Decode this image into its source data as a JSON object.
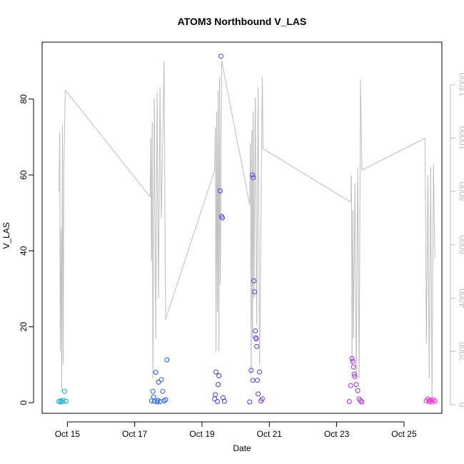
{
  "chart_data": {
    "type": "scatter",
    "title": "ATOM3 Northbound V_LAS",
    "xlabel": "Date",
    "ylabel": "V_LAS",
    "x_ticks": [
      "Oct 15",
      "Oct 17",
      "Oct 19",
      "Oct 21",
      "Oct 23",
      "Oct 25"
    ],
    "x_range": [
      "Oct 14 6:00",
      "Oct 26 3:00"
    ],
    "y_ticks": [
      0,
      20,
      40,
      60,
      80
    ],
    "ylim": [
      -2.8,
      95
    ],
    "y2_ticks": [
      0,
      2000,
      4000,
      6000,
      8000,
      10000,
      12000
    ],
    "y2lim": [
      -320,
      13600
    ],
    "y2_color": "#bdbdbd",
    "point_color_gradient": [
      "#00aaee",
      "#2244ff",
      "#8822ee",
      "#ff22cc"
    ],
    "grid": false,
    "legend": "none",
    "points": [
      {
        "x": "Oct 14 18:00",
        "y": 0.3
      },
      {
        "x": "Oct 14 19:00",
        "y": 0.5
      },
      {
        "x": "Oct 14 20:00",
        "y": 0.2
      },
      {
        "x": "Oct 14 21:00",
        "y": 0.6
      },
      {
        "x": "Oct 14 22:00",
        "y": 3.0
      },
      {
        "x": "Oct 14 23:00",
        "y": 0.4
      },
      {
        "x": "Oct 17 12:00",
        "y": 0.5
      },
      {
        "x": "Oct 17 13:00",
        "y": 3.0
      },
      {
        "x": "Oct 17 14:00",
        "y": 0.4
      },
      {
        "x": "Oct 17 15:00",
        "y": 8.0
      },
      {
        "x": "Oct 17 16:00",
        "y": 0.2
      },
      {
        "x": "Oct 17 17:00",
        "y": 5.4
      },
      {
        "x": "Oct 17 18:00",
        "y": 0.3
      },
      {
        "x": "Oct 17 19:00",
        "y": 6.1
      },
      {
        "x": "Oct 17 20:00",
        "y": 3.0
      },
      {
        "x": "Oct 17 21:00",
        "y": 0.5
      },
      {
        "x": "Oct 17 22:00",
        "y": 0.8
      },
      {
        "x": "Oct 17 23:00",
        "y": 11.3
      },
      {
        "x": "Oct 17 13:30",
        "y": 1.5
      },
      {
        "x": "Oct 17 16:30",
        "y": 0.6
      },
      {
        "x": "Oct 19 9:00",
        "y": 1.0
      },
      {
        "x": "Oct 19 10:00",
        "y": 8.1
      },
      {
        "x": "Oct 19 11:00",
        "y": 0.3
      },
      {
        "x": "Oct 19 12:00",
        "y": 7.1
      },
      {
        "x": "Oct 19 13:00",
        "y": 55.8
      },
      {
        "x": "Oct 19 13:30",
        "y": 91.3
      },
      {
        "x": "Oct 19 14:00",
        "y": 49.1
      },
      {
        "x": "Oct 19 14:30",
        "y": 48.7
      },
      {
        "x": "Oct 19 15:00",
        "y": 1.3
      },
      {
        "x": "Oct 19 16:00",
        "y": 0.4
      },
      {
        "x": "Oct 19 11:30",
        "y": 4.8
      },
      {
        "x": "Oct 19 9:30",
        "y": 2.1
      },
      {
        "x": "Oct 20 10:00",
        "y": 0.2
      },
      {
        "x": "Oct 20 11:00",
        "y": 8.5
      },
      {
        "x": "Oct 20 12:00",
        "y": 60.0
      },
      {
        "x": "Oct 20 12:30",
        "y": 59.3
      },
      {
        "x": "Oct 20 13:00",
        "y": 32.1
      },
      {
        "x": "Oct 20 13:30",
        "y": 29.2
      },
      {
        "x": "Oct 20 14:00",
        "y": 18.9
      },
      {
        "x": "Oct 20 14:20",
        "y": 17.1
      },
      {
        "x": "Oct 20 14:40",
        "y": 16.8
      },
      {
        "x": "Oct 20 15:00",
        "y": 14.8
      },
      {
        "x": "Oct 20 15:30",
        "y": 5.9
      },
      {
        "x": "Oct 20 16:00",
        "y": 2.3
      },
      {
        "x": "Oct 20 17:00",
        "y": 8.1
      },
      {
        "x": "Oct 20 18:00",
        "y": 0.5
      },
      {
        "x": "Oct 20 19:00",
        "y": 1.0
      },
      {
        "x": "Oct 20 12:10",
        "y": 5.9
      },
      {
        "x": "Oct 23 9:00",
        "y": 0.3
      },
      {
        "x": "Oct 23 10:00",
        "y": 4.5
      },
      {
        "x": "Oct 23 11:00",
        "y": 11.6
      },
      {
        "x": "Oct 23 11:30",
        "y": 10.9
      },
      {
        "x": "Oct 23 12:00",
        "y": 9.4
      },
      {
        "x": "Oct 23 12:30",
        "y": 7.5
      },
      {
        "x": "Oct 23 13:00",
        "y": 6.9
      },
      {
        "x": "Oct 23 14:00",
        "y": 4.8
      },
      {
        "x": "Oct 23 15:00",
        "y": 3.2
      },
      {
        "x": "Oct 23 16:00",
        "y": 1.0
      },
      {
        "x": "Oct 23 17:00",
        "y": 0.5
      },
      {
        "x": "Oct 23 18:00",
        "y": 0.2
      },
      {
        "x": "Oct 25 16:00",
        "y": 0.5
      },
      {
        "x": "Oct 25 17:00",
        "y": 1.0
      },
      {
        "x": "Oct 25 18:00",
        "y": 0.3
      },
      {
        "x": "Oct 25 19:00",
        "y": 0.7
      },
      {
        "x": "Oct 25 20:00",
        "y": 0.2
      },
      {
        "x": "Oct 25 21:00",
        "y": 0.8
      },
      {
        "x": "Oct 25 22:00",
        "y": 0.4
      }
    ],
    "line_series_y2": [
      {
        "x": "Oct 14 18:00",
        "y": 8000
      },
      {
        "x": "Oct 14 18:30",
        "y": 10200
      },
      {
        "x": "Oct 14 19:00",
        "y": 2000
      },
      {
        "x": "Oct 14 19:30",
        "y": 6600
      },
      {
        "x": "Oct 14 20:00",
        "y": 500
      },
      {
        "x": "Oct 14 20:30",
        "y": 10500
      },
      {
        "x": "Oct 14 21:00",
        "y": 1500
      },
      {
        "x": "Oct 14 21:30",
        "y": 9000
      },
      {
        "x": "Oct 14 22:30",
        "y": 11800
      },
      {
        "x": "Oct 17 11:00",
        "y": 7800
      },
      {
        "x": "Oct 17 11:30",
        "y": 10000
      },
      {
        "x": "Oct 17 12:00",
        "y": 5400
      },
      {
        "x": "Oct 17 12:30",
        "y": 10600
      },
      {
        "x": "Oct 17 13:00",
        "y": 1000
      },
      {
        "x": "Oct 17 14:00",
        "y": 11500
      },
      {
        "x": "Oct 17 15:00",
        "y": 2500
      },
      {
        "x": "Oct 17 16:00",
        "y": 11700
      },
      {
        "x": "Oct 17 17:00",
        "y": 4000
      },
      {
        "x": "Oct 17 18:00",
        "y": 11900
      },
      {
        "x": "Oct 17 19:00",
        "y": 7000
      },
      {
        "x": "Oct 17 21:00",
        "y": 12900
      },
      {
        "x": "Oct 17 22:00",
        "y": 3200
      },
      {
        "x": "Oct 19 9:00",
        "y": 8800
      },
      {
        "x": "Oct 19 9:30",
        "y": 10400
      },
      {
        "x": "Oct 19 10:00",
        "y": 2000
      },
      {
        "x": "Oct 19 10:30",
        "y": 11000
      },
      {
        "x": "Oct 19 11:00",
        "y": 3500
      },
      {
        "x": "Oct 19 11:30",
        "y": 11800
      },
      {
        "x": "Oct 19 12:00",
        "y": 2000
      },
      {
        "x": "Oct 19 12:30",
        "y": 12300
      },
      {
        "x": "Oct 19 13:00",
        "y": 4500
      },
      {
        "x": "Oct 19 14:00",
        "y": 12900
      },
      {
        "x": "Oct 20 10:00",
        "y": 7500
      },
      {
        "x": "Oct 20 10:30",
        "y": 9800
      },
      {
        "x": "Oct 20 11:00",
        "y": 1200
      },
      {
        "x": "Oct 20 11:30",
        "y": 10300
      },
      {
        "x": "Oct 20 12:00",
        "y": 2500
      },
      {
        "x": "Oct 20 12:30",
        "y": 11000
      },
      {
        "x": "Oct 20 13:00",
        "y": 4000
      },
      {
        "x": "Oct 20 14:00",
        "y": 11500
      },
      {
        "x": "Oct 20 15:00",
        "y": 3000
      },
      {
        "x": "Oct 20 16:00",
        "y": 11900
      },
      {
        "x": "Oct 20 17:00",
        "y": 1500
      },
      {
        "x": "Oct 20 19:00",
        "y": 12300
      },
      {
        "x": "Oct 20 19:30",
        "y": 9600
      },
      {
        "x": "Oct 23 10:00",
        "y": 7600
      },
      {
        "x": "Oct 23 10:30",
        "y": 8600
      },
      {
        "x": "Oct 23 11:00",
        "y": 1500
      },
      {
        "x": "Oct 23 11:30",
        "y": 7300
      },
      {
        "x": "Oct 23 12:00",
        "y": 2500
      },
      {
        "x": "Oct 23 13:00",
        "y": 8300
      },
      {
        "x": "Oct 23 14:00",
        "y": 1000
      },
      {
        "x": "Oct 23 15:00",
        "y": 8900
      },
      {
        "x": "Oct 23 16:00",
        "y": 1000
      },
      {
        "x": "Oct 23 17:00",
        "y": 12200
      },
      {
        "x": "Oct 23 18:00",
        "y": 8800
      },
      {
        "x": "Oct 25 15:00",
        "y": 10000
      },
      {
        "x": "Oct 25 16:00",
        "y": 2300
      },
      {
        "x": "Oct 25 17:00",
        "y": 8600
      },
      {
        "x": "Oct 25 18:00",
        "y": 1000
      },
      {
        "x": "Oct 25 19:00",
        "y": 8900
      },
      {
        "x": "Oct 25 20:00",
        "y": 300
      },
      {
        "x": "Oct 25 21:00",
        "y": 9000
      },
      {
        "x": "Oct 25 22:00",
        "y": 5500
      }
    ]
  }
}
